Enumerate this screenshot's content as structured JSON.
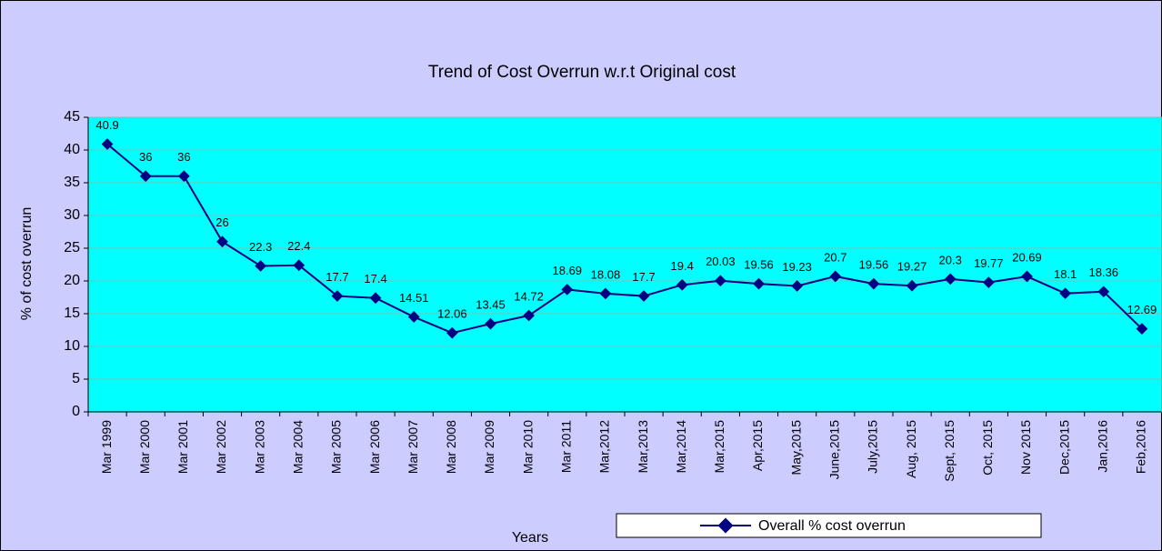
{
  "chart_data": {
    "type": "line",
    "title": "Trend of Cost Overrun w.r.t Original cost",
    "x_label": "Years",
    "y_label": "% of cost overrun",
    "categories": [
      "Mar 1999",
      "Mar 2000",
      "Mar 2001",
      "Mar 2002",
      "Mar 2003",
      "Mar 2004",
      "Mar 2005",
      "Mar 2006",
      "Mar 2007",
      "Mar 2008",
      "Mar 2009",
      "Mar 2010",
      "Mar 2011",
      "Mar,2012",
      "Mar,2013",
      "Mar,2014",
      "Mar,2015",
      "Apr,2015",
      "May,2015",
      "June,2015",
      "July,2015",
      "Aug, 2015",
      "Sept, 2015",
      "Oct, 2015",
      "Nov 2015",
      "Dec,2015",
      "Jan,2016",
      "Feb,2016"
    ],
    "series": [
      {
        "name": "Overall % cost overrun",
        "color": "#000080",
        "values": [
          40.9,
          36,
          36,
          26,
          22.3,
          22.4,
          17.7,
          17.4,
          14.51,
          12.06,
          13.45,
          14.72,
          18.69,
          18.08,
          17.7,
          19.4,
          20.03,
          19.56,
          19.23,
          20.7,
          19.56,
          19.27,
          20.3,
          19.77,
          20.69,
          18.1,
          18.36,
          12.69
        ]
      }
    ],
    "ylim": [
      0,
      45
    ],
    "yticks": [
      0,
      5,
      10,
      15,
      20,
      25,
      30,
      35,
      40,
      45
    ],
    "grid": true,
    "legend": "bottom"
  }
}
